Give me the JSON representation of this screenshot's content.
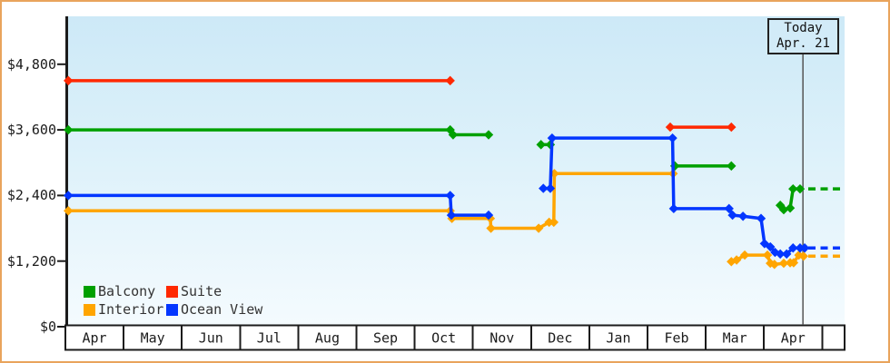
{
  "frame": {
    "border_color": "#e9a45c"
  },
  "chart_data": {
    "type": "line",
    "today": {
      "line1": "Today",
      "line2": "Apr. 21",
      "month_frac": 12.67
    },
    "y_axis": {
      "tick_values": [
        0,
        1200,
        2400,
        3600,
        4800
      ],
      "tick_labels": [
        "$0",
        "$1,200",
        "$2,400",
        "$3,600",
        "$4,800"
      ]
    },
    "x_axis": {
      "month_labels": [
        "Apr",
        "May",
        "Jun",
        "Jul",
        "Aug",
        "Sep",
        "Oct",
        "Nov",
        "Dec",
        "Jan",
        "Feb",
        "Mar",
        "Apr",
        ""
      ]
    },
    "legend_order": [
      "Balcony",
      "Suite",
      "Interior",
      "Ocean View"
    ],
    "series": [
      {
        "name": "Suite",
        "color": "#ff2800",
        "forecast": null,
        "segments": [
          [
            [
              0.05,
              4500
            ],
            [
              6.61,
              4500
            ]
          ],
          [
            [
              10.39,
              3650
            ],
            [
              11.44,
              3650
            ]
          ]
        ]
      },
      {
        "name": "Balcony",
        "color": "#00a000",
        "forecast": 2520,
        "segments": [
          [
            [
              0.05,
              3600
            ],
            [
              6.61,
              3600
            ],
            [
              6.66,
              3510
            ],
            [
              7.27,
              3510
            ]
          ],
          [
            [
              8.17,
              3330
            ],
            [
              8.33,
              3330
            ]
          ],
          [
            [
              10.47,
              2940
            ],
            [
              11.44,
              2940
            ]
          ],
          [
            [
              12.28,
              2220
            ],
            [
              12.34,
              2140
            ],
            [
              12.45,
              2170
            ],
            [
              12.5,
              2520
            ],
            [
              12.62,
              2520
            ]
          ]
        ]
      },
      {
        "name": "Interior",
        "color": "#ffa500",
        "forecast": 1290,
        "segments": [
          [
            [
              0.05,
              2120
            ],
            [
              6.61,
              2120
            ],
            [
              6.64,
              1980
            ],
            [
              7.3,
              1980
            ],
            [
              7.31,
              1800
            ],
            [
              8.13,
              1800
            ],
            [
              8.31,
              1910
            ],
            [
              8.39,
              1910
            ],
            [
              8.4,
              2800
            ],
            [
              10.44,
              2800
            ]
          ],
          [
            [
              11.44,
              1190
            ],
            [
              11.53,
              1220
            ],
            [
              11.67,
              1310
            ],
            [
              12.06,
              1310
            ],
            [
              12.11,
              1160
            ],
            [
              12.18,
              1140
            ],
            [
              12.34,
              1160
            ],
            [
              12.45,
              1170
            ],
            [
              12.51,
              1170
            ],
            [
              12.6,
              1310
            ],
            [
              12.68,
              1290
            ]
          ]
        ]
      },
      {
        "name": "Ocean View",
        "color": "#0336ff",
        "forecast": 1440,
        "segments": [
          [
            [
              0.05,
              2400
            ],
            [
              6.61,
              2400
            ],
            [
              6.63,
              2040
            ],
            [
              7.27,
              2040
            ]
          ],
          [
            [
              8.21,
              2530
            ],
            [
              8.33,
              2530
            ],
            [
              8.36,
              3450
            ],
            [
              10.43,
              3450
            ],
            [
              10.45,
              2160
            ],
            [
              11.4,
              2160
            ],
            [
              11.46,
              2040
            ],
            [
              11.64,
              2020
            ],
            [
              11.95,
              1980
            ],
            [
              12.01,
              1520
            ],
            [
              12.11,
              1460
            ],
            [
              12.19,
              1360
            ],
            [
              12.28,
              1330
            ],
            [
              12.39,
              1330
            ],
            [
              12.5,
              1440
            ],
            [
              12.62,
              1440
            ],
            [
              12.7,
              1440
            ]
          ]
        ]
      }
    ]
  }
}
